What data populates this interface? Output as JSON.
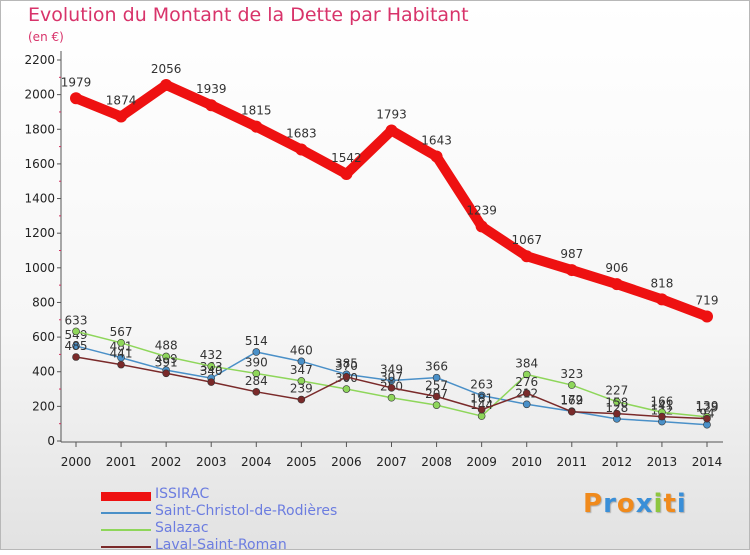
{
  "chart_data": {
    "type": "line",
    "title": "Evolution du Montant de la Dette par Habitant",
    "subtitle": "(en €)",
    "x": [
      "2000",
      "2001",
      "2002",
      "2003",
      "2004",
      "2005",
      "2006",
      "2007",
      "2008",
      "2009",
      "2010",
      "2011",
      "2012",
      "2013",
      "2014"
    ],
    "yticks": [
      0,
      200,
      400,
      600,
      800,
      1000,
      1200,
      1400,
      1600,
      1800,
      2000,
      2200
    ],
    "ylim": [
      0,
      2200
    ],
    "grid": false,
    "legend_position": "bottom-left",
    "series": [
      {
        "name": "ISSIRAC",
        "color": "#ee1111",
        "values": [
          1979,
          1874,
          2056,
          1939,
          1815,
          1683,
          1542,
          1793,
          1643,
          1239,
          1067,
          987,
          906,
          818,
          719
        ]
      },
      {
        "name": "Saint-Christol-de-Rodières",
        "color": "#4a90c8",
        "values": [
          549,
          481,
          409,
          363,
          514,
          460,
          385,
          349,
          366,
          263,
          212,
          172,
          128,
          112,
          94
        ]
      },
      {
        "name": "Salazac",
        "color": "#8ed65a",
        "values": [
          633,
          567,
          488,
          432,
          390,
          347,
          300,
          250,
          207,
          144,
          384,
          323,
          227,
          166,
          139
        ]
      },
      {
        "name": "Laval-Saint-Roman",
        "color": "#7a2a2a",
        "values": [
          485,
          441,
          391,
          340,
          284,
          239,
          370,
          307,
          257,
          181,
          276,
          169,
          158,
          141,
          129
        ]
      }
    ]
  },
  "logo": {
    "text": "Proxiti",
    "colors": [
      "#f08a1c",
      "#3a8fd8",
      "#f08a1c",
      "#3a8fd8",
      "#8ec63f",
      "#f08a1c",
      "#3a8fd8"
    ]
  }
}
